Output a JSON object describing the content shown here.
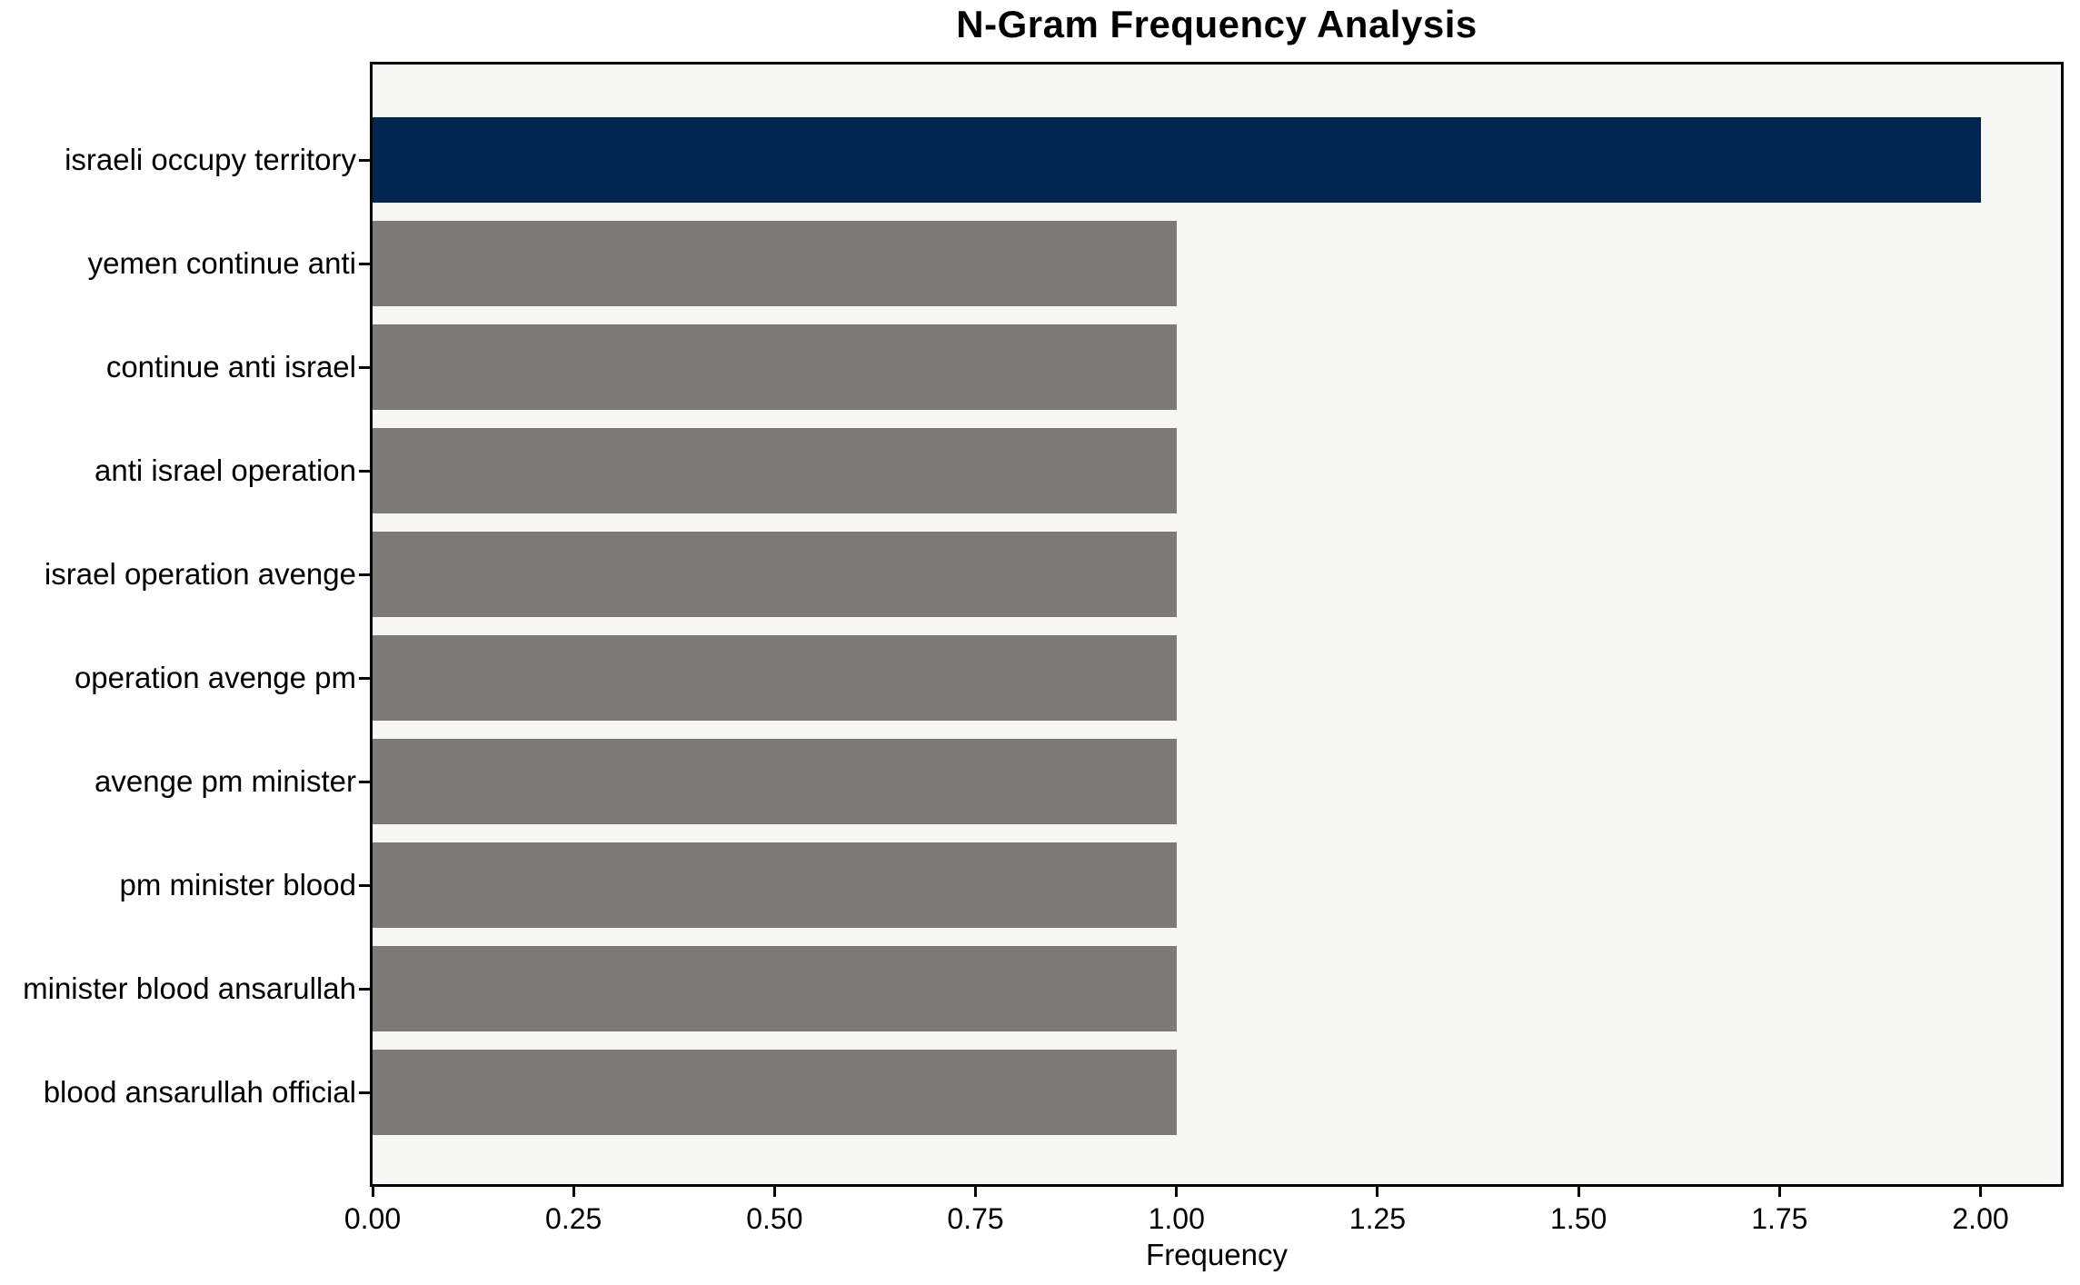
{
  "chart_data": {
    "type": "bar",
    "orientation": "horizontal",
    "title": "N-Gram Frequency Analysis",
    "xlabel": "Frequency",
    "ylabel": "",
    "categories": [
      "israeli occupy territory",
      "yemen continue anti",
      "continue anti israel",
      "anti israel operation",
      "israel operation avenge",
      "operation avenge pm",
      "avenge pm minister",
      "pm minister blood",
      "minister blood ansarullah",
      "blood ansarullah official"
    ],
    "values": [
      2,
      1,
      1,
      1,
      1,
      1,
      1,
      1,
      1,
      1
    ],
    "highlight_index": 0,
    "xlim": [
      0,
      2.1
    ],
    "xticks": {
      "values": [
        0,
        0.25,
        0.5,
        0.75,
        1.0,
        1.25,
        1.5,
        1.75,
        2.0
      ],
      "labels": [
        "0.00",
        "0.25",
        "0.50",
        "0.75",
        "1.00",
        "1.25",
        "1.50",
        "1.75",
        "2.00"
      ]
    },
    "grid": false,
    "legend": "none",
    "colors": {
      "highlight_bar": "#00254e",
      "default_bar": "#7b7a76",
      "plot_background": "#f7f7f6",
      "figure_background": "#ffffff",
      "spine": "#000000",
      "text": "#000000"
    }
  }
}
